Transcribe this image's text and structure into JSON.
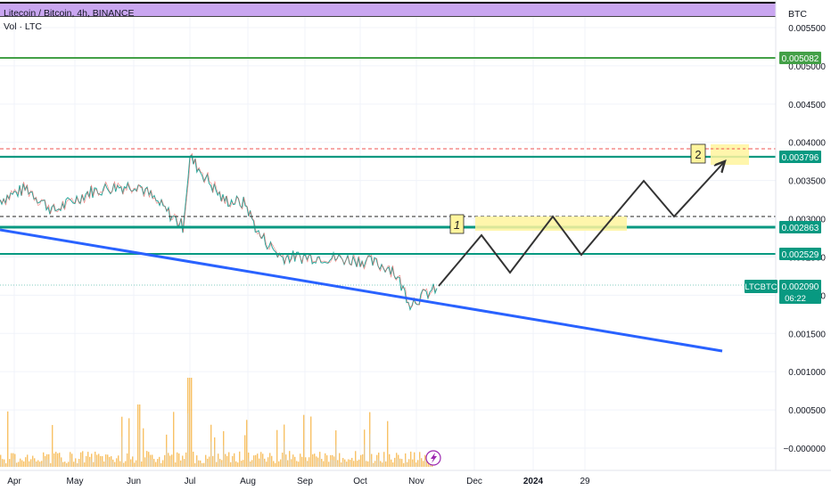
{
  "header": {
    "title": "Litecoin / Bitcoin, 4h, BINANCE",
    "volume_label": "Vol · LTC",
    "currency": "BTC"
  },
  "price_axis": {
    "ticks": [
      "0.005500",
      "0.005000",
      "0.004500",
      "0.004000",
      "0.003500",
      "0.003000",
      "0.002500",
      "0.002000",
      "0.001500",
      "0.001000",
      "0.000500",
      "−0.000000"
    ]
  },
  "time_axis": {
    "ticks": [
      "Apr",
      "May",
      "Jun",
      "Jul",
      "Aug",
      "Sep",
      "Oct",
      "Nov",
      "Dec",
      "2024",
      "29"
    ]
  },
  "level_labels": [
    {
      "text": "0.005082",
      "color": "#43a047"
    },
    {
      "text": "0.003796",
      "color": "#089981"
    },
    {
      "text": "0.002863",
      "color": "#089981"
    },
    {
      "text": "0.002529",
      "color": "#089981"
    }
  ],
  "current_price": {
    "symbol": "LTCBTC",
    "price": "0.002090",
    "countdown": "06:22",
    "color": "#089981"
  },
  "annotations": {
    "target_1": "1",
    "target_2": "2"
  },
  "icons": [
    "lightning-icon"
  ],
  "colors": {
    "header_band": "#c9a6f0",
    "trendline": "#2962ff",
    "support_green": "#089981",
    "resistance_green": "#43a047",
    "forecast_path": "#333333",
    "target_box": "#fff59d",
    "volume": "#f5a623"
  },
  "chart_data": {
    "type": "line",
    "title": "Litecoin / Bitcoin, 4h, BINANCE",
    "xlabel": "",
    "ylabel": "",
    "ylim": [
      0,
      0.0055
    ],
    "grid": true,
    "horizontal_levels": [
      0.005082,
      0.003796,
      0.002863,
      0.002529
    ],
    "dashed_levels": [
      0.0039,
      0.003
    ],
    "series": [
      {
        "x": [
          "Apr",
          "Apr",
          "May",
          "May",
          "Jun",
          "Jun",
          "Jul",
          "Jul",
          "Jul",
          "Aug",
          "Aug",
          "Sep",
          "Sep",
          "Oct",
          "Oct",
          "Nov",
          "Nov"
        ],
        "values": [
          0.00325,
          0.0034,
          0.0031,
          0.00335,
          0.0034,
          0.00345,
          0.0029,
          0.0038,
          0.00325,
          0.0032,
          0.0028,
          0.0025,
          0.0025,
          0.00245,
          0.00235,
          0.0019,
          0.00209
        ]
      },
      {
        "x": [
          "Nov",
          "Nov",
          "Dec",
          "Dec",
          "Dec",
          "2024",
          "2024",
          "29",
          "29",
          "29",
          "29"
        ],
        "values": [
          0.00209,
          0.0027,
          0.0022,
          0.003,
          0.0024,
          0.003,
          0.0024,
          0.0035,
          0.003,
          0.0036,
          0.0038
        ]
      }
    ]
  }
}
